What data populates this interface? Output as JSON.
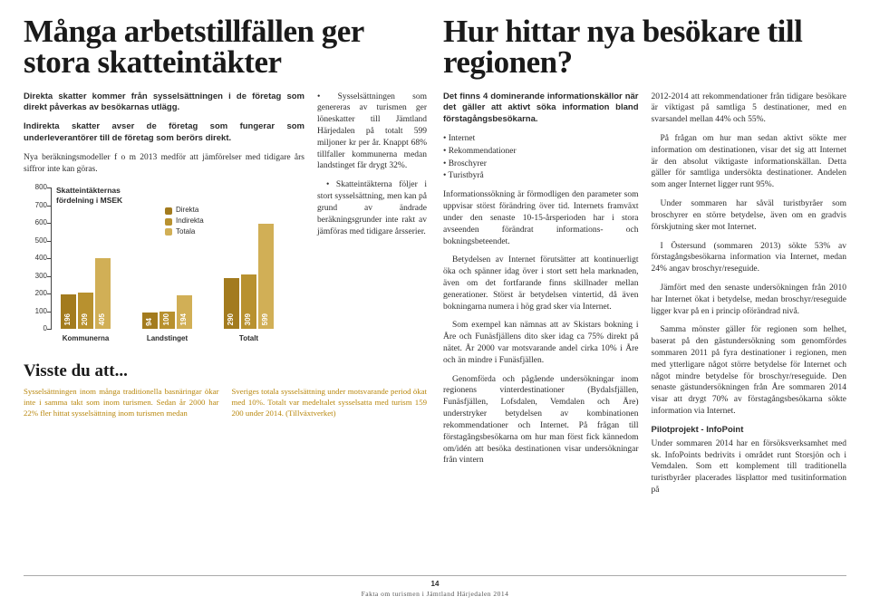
{
  "left": {
    "headline": "Många arbetstillfällen ger stora skatteintäkter",
    "lead1": "Direkta skatter kommer från sysselsättningen i de företag som direkt påverkas av besökarnas utlägg.",
    "lead2": "Indirekta skatter avser de företag som fungerar som underleverantörer till de företag som berörs direkt.",
    "p1": "Nya beräkningsmodeller f o m 2013 medför att jämförelser med tidigare års siffror inte kan göras.",
    "col2_bullet1": "Sysselsättningen som genereras av turismen ger löneskatter till Jämtland Härjedalen på totalt 599 miljoner kr per år. Knappt 68% tillfaller kommunerna medan landstinget får drygt 32%.",
    "col2_bullet2": "Skatteintäkterna följer i stort sysselsättning, men kan på grund av ändrade beräkningsgrunder inte rakt av jämföras med tidigare årsserier.",
    "chart": {
      "type": "bar",
      "caption1": "Skatteintäkternas",
      "caption2": "fördelning i MSEK",
      "ylim": [
        0,
        800
      ],
      "ytick_step": 100,
      "groups": [
        "Kommunerna",
        "Landstinget",
        "Totalt"
      ],
      "series": [
        {
          "name": "Direkta",
          "color": "#a37b1e",
          "values": [
            196,
            94,
            290
          ]
        },
        {
          "name": "Indirekta",
          "color": "#b8912f",
          "values": [
            209,
            100,
            309
          ]
        },
        {
          "name": "Totala",
          "color": "#d1af56",
          "values": [
            405,
            194,
            599
          ]
        }
      ],
      "legend": [
        "Direkta",
        "Indirekta",
        "Totala"
      ]
    },
    "didyou": {
      "title": "Visste du att...",
      "p1": "Sysselsättningen inom många traditionella basnäringar ökar inte i samma takt som inom turismen. Sedan år 2000 har 22% fler hittat sysselsättning inom turismen medan",
      "p2": "Sveriges totala sysselsättning under motsvarande period ökat med 10%. Totalt var medeltalet sysselsatta med turism 159 200 under 2014. (Tillväxtverket)"
    }
  },
  "right": {
    "headline": "Hur hittar nya besökare till regionen?",
    "lead": "Det finns 4 dominerande informationskällor när det gäller att aktivt söka information bland förstagångsbesökarna.",
    "bullets": [
      "Internet",
      "Rekommendationer",
      "Broschyrer",
      "Turistbyrå"
    ],
    "p1": "Informationssökning är förmodligen den parameter som uppvisar störst förändring över tid. Internets framväxt under den senaste 10-15-årsperioden har i stora avseenden förändrat informations- och bokningsbeteendet.",
    "p2": "Betydelsen av Internet förutsätter att kontinuerligt öka och spänner idag över i stort sett hela marknaden, även om det fortfarande finns skillnader mellan generationer. Störst är betydelsen vintertid, då även bokningarna numera i hög grad sker via Internet.",
    "p3": "Som exempel kan nämnas att av Skistars bokning i Åre och Funäsfjällens dito sker idag ca 75% direkt på nätet. År 2000 var motsvarande andel cirka 10% i Åre och än mindre i Funäsfjällen.",
    "p4": "Genomförda och pågående undersökningar inom regionens vinterdestinationer (Bydalsfjällen, Funäsfjällen, Lofsdalen, Vemdalen och Åre) understryker betydelsen av kombinationen rekommendationer och Internet. På frågan till förstagångsbesökarna om hur man först fick kännedom om/idén att besöka destinationen visar undersökningar från vintern",
    "p5": "2012-2014 att rekommendationer från tidigare besökare är viktigast på samtliga 5 destinationer, med en svarsandel mellan 44% och 55%.",
    "p6": "På frågan om hur man sedan aktivt sökte mer information om destinationen, visar det sig att Internet är den absolut viktigaste informationskällan. Detta gäller för samtliga undersökta destinationer. Andelen som anger Internet ligger runt 95%.",
    "p7": "Under sommaren har såväl turistbyråer som broschyrer en större betydelse, även om en gradvis förskjutning sker mot Internet.",
    "p8": "I Östersund (sommaren 2013) sökte 53% av förstagångsbesökarna information via Internet, medan 24% angav broschyr/reseguide.",
    "p9": "Jämfört med den senaste undersökningen från 2010 har Internet ökat i betydelse, medan broschyr/reseguide ligger kvar på en i princip oförändrad nivå.",
    "p10": "Samma mönster gäller för regionen som helhet, baserat på den gästundersökning som genomfördes sommaren 2011 på fyra destinationer i regionen, men med ytterligare något större betydelse för Internet och något mindre betydelse för broschyr/reseguide. Den senaste gästundersökningen från Åre sommaren 2014 visar att drygt 70% av förstagångsbesökarna sökte information via Internet.",
    "pilot_head": "Pilotprojekt - InfoPoint",
    "pilot": "Under sommaren 2014 har en försöksverksamhet med sk. InfoPoints bedrivits i området runt Storsjön och i Vemdalen. Som ett komplement till traditionella turistbyråer placerades läsplattor med tusitinformation på"
  },
  "footer": {
    "page": "14",
    "source": "Fakta om turismen i Jämtland Härjedalen 2014"
  }
}
